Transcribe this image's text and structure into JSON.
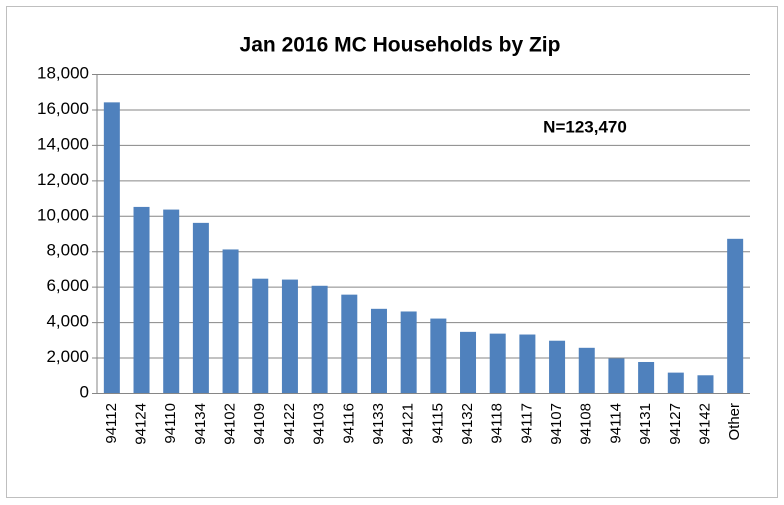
{
  "chart_data": {
    "type": "bar",
    "title": "Jan 2016 MC Households by Zip",
    "annotation": "N=123,470",
    "categories": [
      "94112",
      "94124",
      "94110",
      "94134",
      "94102",
      "94109",
      "94122",
      "94103",
      "94116",
      "94133",
      "94121",
      "94115",
      "94132",
      "94118",
      "94117",
      "94107",
      "94108",
      "94114",
      "94131",
      "94127",
      "94142",
      "Other"
    ],
    "values": [
      16400,
      10500,
      10350,
      9600,
      8100,
      6450,
      6400,
      6050,
      5550,
      4750,
      4600,
      4200,
      3450,
      3350,
      3300,
      2950,
      2550,
      1950,
      1750,
      1150,
      1000,
      8700
    ],
    "color": "#4f81bd",
    "ylim": [
      0,
      18000
    ],
    "yticks": [
      0,
      {
        "value": 2000,
        "label": "2,000"
      },
      {
        "value": 4000,
        "label": "4,000"
      },
      {
        "value": 6000,
        "label": "6,000"
      },
      {
        "value": 8000,
        "label": "8,000"
      },
      {
        "value": 10000,
        "label": "10,000"
      },
      {
        "value": 12000,
        "label": "12,000"
      },
      {
        "value": 14000,
        "label": "14,000"
      },
      {
        "value": 16000,
        "label": "16,000"
      },
      {
        "value": 18000,
        "label": "18,000"
      }
    ],
    "grid": true
  }
}
